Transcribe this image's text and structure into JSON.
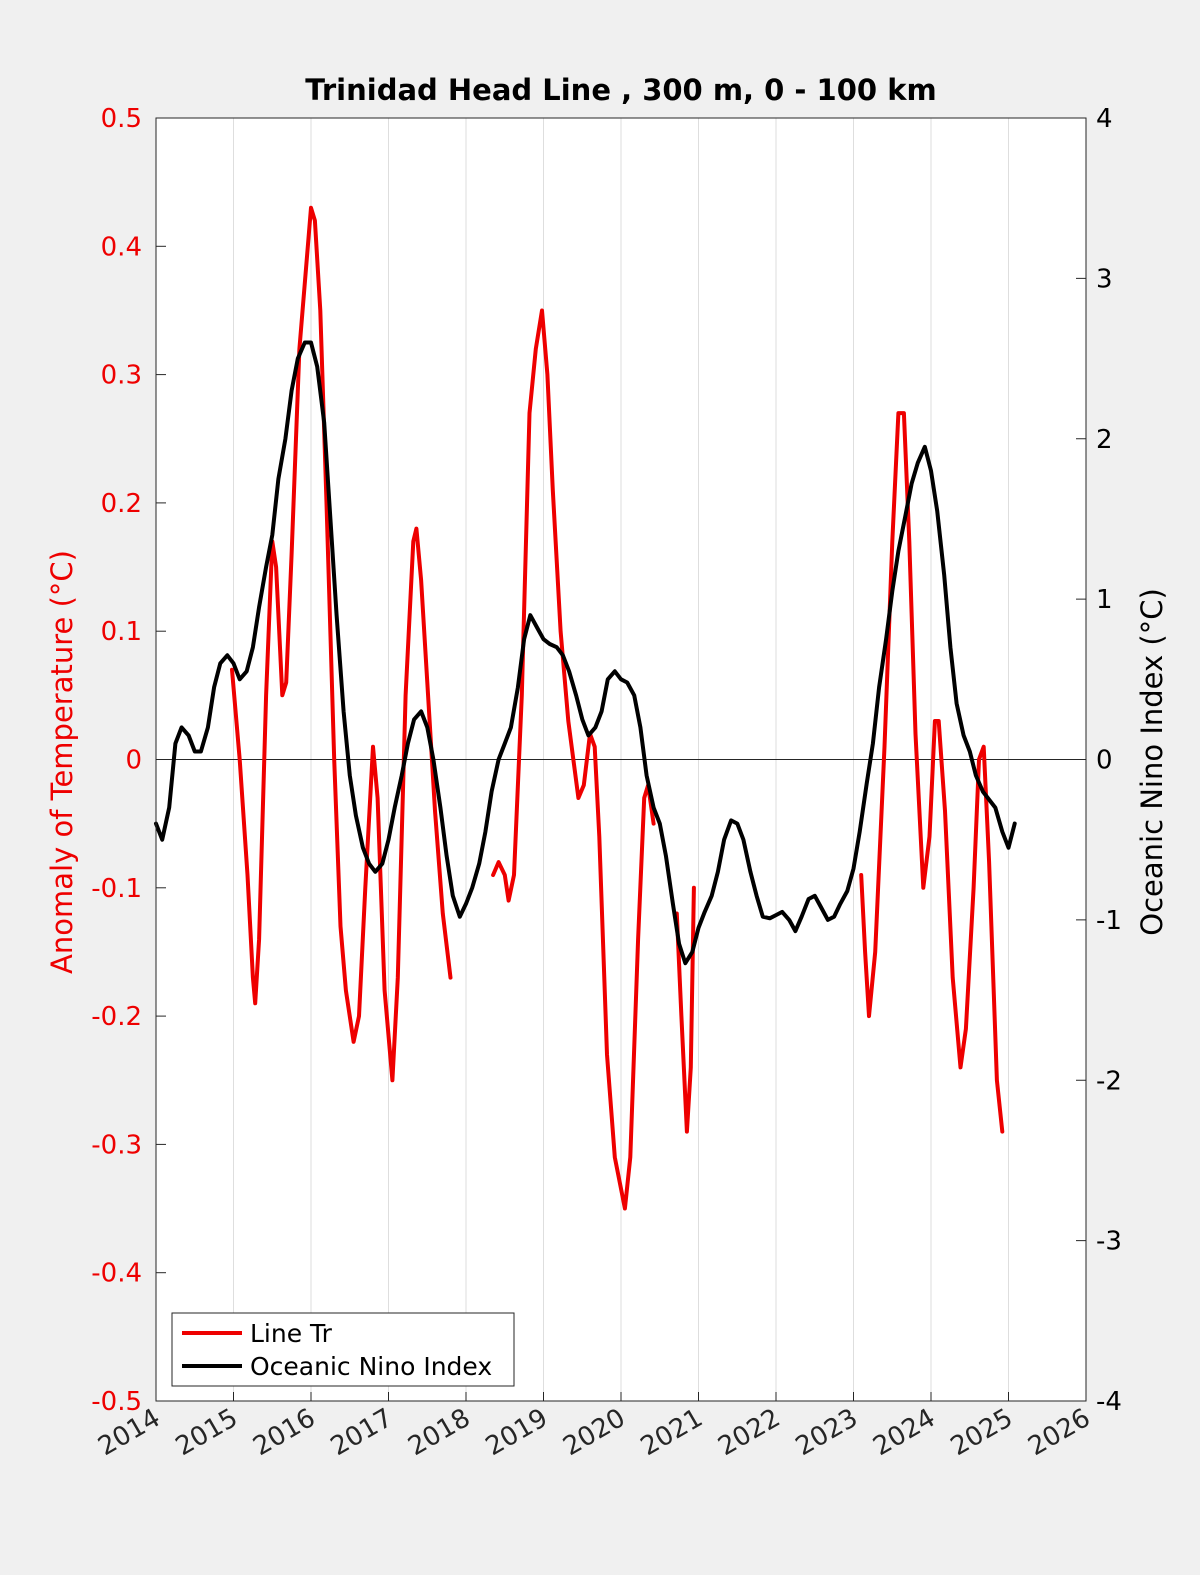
{
  "chart_data": {
    "type": "line",
    "title": "Trinidad Head Line , 300 m, 0 - 100 km",
    "xlabel": "",
    "ylabel_left": "Anomaly of Temperature (°C)",
    "ylabel_right": "Oceanic Nino Index (°C)",
    "xlim": [
      2014,
      2026
    ],
    "ylim_left": [
      -0.5,
      0.5
    ],
    "ylim_right": [
      -4,
      4
    ],
    "x_ticks": [
      "2014",
      "2015",
      "2016",
      "2017",
      "2018",
      "2019",
      "2020",
      "2021",
      "2022",
      "2023",
      "2024",
      "2025",
      "2026"
    ],
    "y_ticks_left": [
      "0.5",
      "0.4",
      "0.3",
      "0.2",
      "0.1",
      "0",
      "-0.1",
      "-0.2",
      "-0.3",
      "-0.4",
      "-0.5"
    ],
    "y_ticks_right": [
      "4",
      "3",
      "2",
      "1",
      "0",
      "-1",
      "-2",
      "-3",
      "-4"
    ],
    "grid": "vertical",
    "legend_position": "bottom-left",
    "colors": {
      "line_tr": "#ee0000",
      "oni": "#000000",
      "left_axis": "#ee0000",
      "right_axis": "#000000"
    },
    "series": [
      {
        "name": "Line Tr",
        "axis": "left",
        "segments": [
          [
            [
              2014.98,
              0.07
            ],
            [
              2015.08,
              0.0
            ],
            [
              2015.18,
              -0.09
            ],
            [
              2015.25,
              -0.17
            ],
            [
              2015.28,
              -0.19
            ],
            [
              2015.33,
              -0.14
            ],
            [
              2015.42,
              0.05
            ],
            [
              2015.5,
              0.17
            ],
            [
              2015.55,
              0.15
            ],
            [
              2015.63,
              0.05
            ],
            [
              2015.68,
              0.06
            ],
            [
              2015.75,
              0.16
            ],
            [
              2015.85,
              0.32
            ],
            [
              2016.0,
              0.43
            ],
            [
              2016.05,
              0.42
            ],
            [
              2016.12,
              0.35
            ],
            [
              2016.2,
              0.2
            ],
            [
              2016.3,
              0.0
            ],
            [
              2016.38,
              -0.13
            ],
            [
              2016.45,
              -0.18
            ],
            [
              2016.55,
              -0.22
            ],
            [
              2016.62,
              -0.2
            ],
            [
              2016.7,
              -0.1
            ],
            [
              2016.8,
              0.01
            ],
            [
              2016.86,
              -0.03
            ],
            [
              2016.95,
              -0.18
            ],
            [
              2017.05,
              -0.25
            ],
            [
              2017.12,
              -0.17
            ],
            [
              2017.22,
              0.05
            ],
            [
              2017.32,
              0.17
            ],
            [
              2017.36,
              0.18
            ],
            [
              2017.42,
              0.14
            ],
            [
              2017.5,
              0.06
            ],
            [
              2017.6,
              -0.04
            ],
            [
              2017.7,
              -0.12
            ],
            [
              2017.8,
              -0.17
            ]
          ],
          [
            [
              2018.35,
              -0.09
            ],
            [
              2018.42,
              -0.08
            ],
            [
              2018.5,
              -0.09
            ],
            [
              2018.55,
              -0.11
            ],
            [
              2018.62,
              -0.09
            ],
            [
              2018.72,
              0.05
            ],
            [
              2018.82,
              0.27
            ],
            [
              2018.9,
              0.32
            ],
            [
              2018.98,
              0.35
            ],
            [
              2019.05,
              0.3
            ],
            [
              2019.12,
              0.21
            ],
            [
              2019.22,
              0.1
            ],
            [
              2019.32,
              0.03
            ],
            [
              2019.45,
              -0.03
            ],
            [
              2019.52,
              -0.02
            ],
            [
              2019.6,
              0.02
            ],
            [
              2019.66,
              0.01
            ],
            [
              2019.72,
              -0.06
            ],
            [
              2019.82,
              -0.23
            ],
            [
              2019.92,
              -0.31
            ],
            [
              2020.05,
              -0.35
            ],
            [
              2020.12,
              -0.31
            ],
            [
              2020.22,
              -0.14
            ],
            [
              2020.3,
              -0.03
            ],
            [
              2020.35,
              -0.02
            ],
            [
              2020.42,
              -0.05
            ]
          ],
          [
            [
              2020.72,
              -0.12
            ],
            [
              2020.78,
              -0.2
            ],
            [
              2020.85,
              -0.29
            ],
            [
              2020.9,
              -0.24
            ],
            [
              2020.94,
              -0.1
            ]
          ],
          [
            [
              2023.1,
              -0.09
            ],
            [
              2023.15,
              -0.15
            ],
            [
              2023.2,
              -0.2
            ],
            [
              2023.28,
              -0.15
            ],
            [
              2023.4,
              0.01
            ],
            [
              2023.5,
              0.17
            ],
            [
              2023.58,
              0.27
            ],
            [
              2023.65,
              0.27
            ],
            [
              2023.72,
              0.17
            ],
            [
              2023.8,
              0.02
            ],
            [
              2023.9,
              -0.1
            ],
            [
              2023.98,
              -0.06
            ],
            [
              2024.05,
              0.03
            ],
            [
              2024.1,
              0.03
            ],
            [
              2024.18,
              -0.04
            ],
            [
              2024.28,
              -0.17
            ],
            [
              2024.38,
              -0.24
            ],
            [
              2024.45,
              -0.21
            ],
            [
              2024.55,
              -0.1
            ],
            [
              2024.62,
              0.0
            ],
            [
              2024.68,
              0.01
            ],
            [
              2024.75,
              -0.08
            ],
            [
              2024.85,
              -0.25
            ],
            [
              2024.92,
              -0.29
            ]
          ]
        ]
      },
      {
        "name": "Oceanic Nino Index",
        "axis": "right",
        "segments": [
          [
            [
              2014.0,
              -0.4
            ],
            [
              2014.08,
              -0.5
            ],
            [
              2014.17,
              -0.3
            ],
            [
              2014.25,
              0.1
            ],
            [
              2014.33,
              0.2
            ],
            [
              2014.42,
              0.15
            ],
            [
              2014.5,
              0.05
            ],
            [
              2014.58,
              0.05
            ],
            [
              2014.67,
              0.2
            ],
            [
              2014.75,
              0.45
            ],
            [
              2014.83,
              0.6
            ],
            [
              2014.92,
              0.65
            ],
            [
              2015.0,
              0.6
            ],
            [
              2015.08,
              0.5
            ],
            [
              2015.17,
              0.55
            ],
            [
              2015.25,
              0.7
            ],
            [
              2015.33,
              0.95
            ],
            [
              2015.42,
              1.2
            ],
            [
              2015.5,
              1.4
            ],
            [
              2015.58,
              1.75
            ],
            [
              2015.67,
              2.0
            ],
            [
              2015.75,
              2.3
            ],
            [
              2015.83,
              2.5
            ],
            [
              2015.92,
              2.6
            ],
            [
              2016.0,
              2.6
            ],
            [
              2016.08,
              2.45
            ],
            [
              2016.17,
              2.1
            ],
            [
              2016.25,
              1.5
            ],
            [
              2016.33,
              0.9
            ],
            [
              2016.42,
              0.3
            ],
            [
              2016.5,
              -0.1
            ],
            [
              2016.58,
              -0.35
            ],
            [
              2016.67,
              -0.55
            ],
            [
              2016.75,
              -0.65
            ],
            [
              2016.83,
              -0.7
            ],
            [
              2016.92,
              -0.65
            ],
            [
              2017.0,
              -0.5
            ],
            [
              2017.08,
              -0.3
            ],
            [
              2017.17,
              -0.1
            ],
            [
              2017.25,
              0.1
            ],
            [
              2017.33,
              0.25
            ],
            [
              2017.42,
              0.3
            ],
            [
              2017.5,
              0.2
            ],
            [
              2017.58,
              0.0
            ],
            [
              2017.67,
              -0.3
            ],
            [
              2017.75,
              -0.6
            ],
            [
              2017.83,
              -0.85
            ],
            [
              2017.92,
              -0.98
            ],
            [
              2018.0,
              -0.9
            ],
            [
              2018.08,
              -0.8
            ],
            [
              2018.17,
              -0.65
            ],
            [
              2018.25,
              -0.45
            ],
            [
              2018.33,
              -0.2
            ],
            [
              2018.42,
              0.0
            ],
            [
              2018.5,
              0.1
            ],
            [
              2018.58,
              0.2
            ],
            [
              2018.67,
              0.45
            ],
            [
              2018.75,
              0.75
            ],
            [
              2018.83,
              0.9
            ],
            [
              2018.92,
              0.82
            ],
            [
              2019.0,
              0.75
            ],
            [
              2019.08,
              0.72
            ],
            [
              2019.17,
              0.7
            ],
            [
              2019.25,
              0.65
            ],
            [
              2019.33,
              0.55
            ],
            [
              2019.42,
              0.4
            ],
            [
              2019.5,
              0.25
            ],
            [
              2019.58,
              0.15
            ],
            [
              2019.67,
              0.2
            ],
            [
              2019.75,
              0.3
            ],
            [
              2019.83,
              0.5
            ],
            [
              2019.92,
              0.55
            ],
            [
              2020.0,
              0.5
            ],
            [
              2020.08,
              0.48
            ],
            [
              2020.17,
              0.4
            ],
            [
              2020.25,
              0.2
            ],
            [
              2020.33,
              -0.1
            ],
            [
              2020.42,
              -0.3
            ],
            [
              2020.5,
              -0.4
            ],
            [
              2020.58,
              -0.6
            ],
            [
              2020.67,
              -0.9
            ],
            [
              2020.75,
              -1.15
            ],
            [
              2020.83,
              -1.27
            ],
            [
              2020.92,
              -1.2
            ],
            [
              2021.0,
              -1.05
            ],
            [
              2021.08,
              -0.95
            ],
            [
              2021.17,
              -0.85
            ],
            [
              2021.25,
              -0.7
            ],
            [
              2021.33,
              -0.5
            ],
            [
              2021.42,
              -0.38
            ],
            [
              2021.5,
              -0.4
            ],
            [
              2021.58,
              -0.5
            ],
            [
              2021.67,
              -0.7
            ],
            [
              2021.75,
              -0.85
            ],
            [
              2021.83,
              -0.98
            ],
            [
              2021.92,
              -0.99
            ],
            [
              2022.0,
              -0.97
            ],
            [
              2022.08,
              -0.95
            ],
            [
              2022.17,
              -1.0
            ],
            [
              2022.25,
              -1.07
            ],
            [
              2022.33,
              -0.98
            ],
            [
              2022.42,
              -0.87
            ],
            [
              2022.5,
              -0.85
            ],
            [
              2022.58,
              -0.92
            ],
            [
              2022.67,
              -1.0
            ],
            [
              2022.75,
              -0.98
            ],
            [
              2022.83,
              -0.9
            ],
            [
              2022.92,
              -0.82
            ],
            [
              2023.0,
              -0.68
            ],
            [
              2023.08,
              -0.45
            ],
            [
              2023.17,
              -0.15
            ],
            [
              2023.25,
              0.1
            ],
            [
              2023.33,
              0.45
            ],
            [
              2023.42,
              0.75
            ],
            [
              2023.5,
              1.05
            ],
            [
              2023.58,
              1.3
            ],
            [
              2023.67,
              1.52
            ],
            [
              2023.75,
              1.72
            ],
            [
              2023.83,
              1.85
            ],
            [
              2023.92,
              1.95
            ],
            [
              2024.0,
              1.8
            ],
            [
              2024.08,
              1.55
            ],
            [
              2024.17,
              1.15
            ],
            [
              2024.25,
              0.7
            ],
            [
              2024.33,
              0.35
            ],
            [
              2024.42,
              0.15
            ],
            [
              2024.5,
              0.05
            ],
            [
              2024.58,
              -0.1
            ],
            [
              2024.67,
              -0.2
            ],
            [
              2024.75,
              -0.25
            ],
            [
              2024.83,
              -0.3
            ],
            [
              2024.92,
              -0.45
            ],
            [
              2025.0,
              -0.55
            ],
            [
              2025.08,
              -0.4
            ]
          ]
        ]
      }
    ]
  }
}
